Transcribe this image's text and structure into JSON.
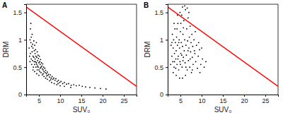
{
  "chart_data": [
    {
      "type": "scatter",
      "title": "A",
      "x_label": "SUV₀",
      "y_label": "DRM",
      "xlim": [
        2,
        28
      ],
      "ylim": [
        0,
        1.65
      ],
      "xticks": [
        5,
        10,
        15,
        20,
        25
      ],
      "yticks": [
        0,
        0.5,
        1,
        1.5
      ],
      "series": [
        {
          "type": "scatter",
          "color": "#000000",
          "marker": "dot",
          "x": [
            3.0,
            3.2,
            3.1,
            3.4,
            3.3,
            3.5,
            3.6,
            3.8,
            3.9,
            4.0,
            4.1,
            4.2,
            4.3,
            4.4,
            4.5,
            4.6,
            4.7,
            4.8,
            4.9,
            5.0,
            5.1,
            5.2,
            5.3,
            5.4,
            5.5,
            5.6,
            5.7,
            5.8,
            5.9,
            6.0,
            6.1,
            6.2,
            6.4,
            6.5,
            6.6,
            6.8,
            7.0,
            7.1,
            7.3,
            7.5,
            7.7,
            7.9,
            8.1,
            8.3,
            8.5,
            8.8,
            9.0,
            9.3,
            9.6,
            9.9,
            10.2,
            10.6,
            11.0,
            11.5,
            12.0,
            12.6,
            13.2,
            13.8,
            14.5,
            15.2,
            16.0,
            17.0,
            18.2,
            19.5,
            20.8,
            2.8,
            2.9,
            3.0,
            3.2,
            3.3,
            3.5,
            3.6,
            3.7,
            3.9,
            4.0,
            4.2,
            4.3,
            4.5,
            4.6,
            4.8,
            5.0,
            5.2,
            5.5,
            5.8,
            6.2,
            6.6,
            7.0,
            7.5,
            8.0,
            8.6,
            9.2,
            10.0,
            11.0,
            12.5,
            2.7,
            2.9,
            3.1,
            3.4,
            3.8,
            4.1,
            4.4,
            4.7,
            5.3,
            6.0,
            6.8,
            7.8,
            9.5,
            3.6,
            4.0,
            4.5,
            5.0
          ],
          "values": [
            1.2,
            1.05,
            0.95,
            1.1,
            0.88,
            0.92,
            0.85,
            0.98,
            0.8,
            0.9,
            0.75,
            0.82,
            0.7,
            0.95,
            0.68,
            0.78,
            0.62,
            0.72,
            0.66,
            0.58,
            0.7,
            0.6,
            0.55,
            0.64,
            0.5,
            0.58,
            0.52,
            0.47,
            0.56,
            0.45,
            0.5,
            0.42,
            0.48,
            0.4,
            0.44,
            0.38,
            0.41,
            0.35,
            0.37,
            0.32,
            0.36,
            0.3,
            0.33,
            0.28,
            0.3,
            0.26,
            0.29,
            0.24,
            0.26,
            0.22,
            0.24,
            0.2,
            0.22,
            0.19,
            0.2,
            0.17,
            0.18,
            0.16,
            0.17,
            0.15,
            0.14,
            0.13,
            0.12,
            0.11,
            0.1,
            0.7,
            0.6,
            0.75,
            0.65,
            0.55,
            0.62,
            0.7,
            0.5,
            0.6,
            0.55,
            0.6,
            0.5,
            0.55,
            0.45,
            0.5,
            0.45,
            0.42,
            0.4,
            0.36,
            0.33,
            0.3,
            0.28,
            0.25,
            0.22,
            0.2,
            0.18,
            0.16,
            0.15,
            0.13,
            0.85,
            1.0,
            1.3,
            0.78,
            0.68,
            0.65,
            0.58,
            0.52,
            0.48,
            0.38,
            0.34,
            0.27,
            0.2,
            0.45,
            0.42,
            0.38,
            0.35
          ]
        },
        {
          "type": "line",
          "color": "#ff0000",
          "line_style": "solid",
          "x": [
            2,
            28
          ],
          "values": [
            1.6,
            0.15
          ]
        }
      ]
    },
    {
      "type": "scatter",
      "title": "B",
      "x_label": "SUV₀",
      "y_label": "DRM",
      "xlim": [
        2,
        28
      ],
      "ylim": [
        0,
        1.65
      ],
      "xticks": [
        5,
        10,
        15,
        20,
        25
      ],
      "yticks": [
        0,
        0.5,
        1,
        1.5
      ],
      "series": [
        {
          "type": "scatter",
          "color": "#000000",
          "marker": "dot",
          "x": [
            2.8,
            3.0,
            3.1,
            3.2,
            3.3,
            3.4,
            3.5,
            3.6,
            3.7,
            3.8,
            3.9,
            4.0,
            4.1,
            4.2,
            4.3,
            4.4,
            4.5,
            4.6,
            4.7,
            4.8,
            4.9,
            5.0,
            5.1,
            5.2,
            5.3,
            5.4,
            5.5,
            5.6,
            5.7,
            5.8,
            5.9,
            6.0,
            6.1,
            6.2,
            6.3,
            6.4,
            6.5,
            6.6,
            6.7,
            6.8,
            6.9,
            7.0,
            7.1,
            7.2,
            7.3,
            7.4,
            7.5,
            7.6,
            7.7,
            7.8,
            7.9,
            8.0,
            8.2,
            8.4,
            8.6,
            8.8,
            9.0,
            9.2,
            9.5,
            9.8,
            10.2,
            10.6,
            11.0,
            6.0,
            5.5,
            6.6,
            4.9,
            7.0,
            3.5,
            4.2,
            5.1,
            5.7,
            3.3,
            4.0,
            4.8,
            5.5,
            6.2,
            2.7,
            3.0,
            3.6,
            4.4,
            5.0,
            5.6,
            6.3,
            7.8,
            8.3,
            9.3,
            10.0,
            4.6,
            5.3,
            6.8,
            7.3,
            8.5,
            3.9,
            4.3,
            9.6
          ],
          "values": [
            0.9,
            0.7,
            1.1,
            0.6,
            0.85,
            1.0,
            0.5,
            0.75,
            1.2,
            0.95,
            0.65,
            0.8,
            1.05,
            0.55,
            0.9,
            1.3,
            0.7,
            0.45,
            1.0,
            0.85,
            0.6,
            1.15,
            0.75,
            0.95,
            1.45,
            0.5,
            0.88,
            1.1,
            0.68,
            1.35,
            0.8,
            1.0,
            0.58,
            1.55,
            0.9,
            0.72,
            1.2,
            0.45,
            0.98,
            1.4,
            0.62,
            0.85,
            1.05,
            0.5,
            1.25,
            0.78,
            0.95,
            0.4,
            1.1,
            0.68,
            0.88,
            0.55,
            1.0,
            0.75,
            0.6,
            0.9,
            0.48,
            0.7,
            0.82,
            0.55,
            0.65,
            0.5,
            0.6,
            1.62,
            1.6,
            1.58,
            1.5,
            1.5,
            1.3,
            1.2,
            1.3,
            1.22,
            0.4,
            0.35,
            0.3,
            0.3,
            0.35,
            0.55,
            0.95,
            0.6,
            0.65,
            0.55,
            0.62,
            0.5,
            0.45,
            0.8,
            0.95,
            0.85,
            0.95,
            0.72,
            0.8,
            0.65,
            1.15,
            0.48,
            1.45,
            0.4
          ]
        },
        {
          "type": "line",
          "color": "#ff0000",
          "line_style": "solid",
          "x": [
            2,
            28
          ],
          "values": [
            1.6,
            0.15
          ]
        }
      ]
    }
  ]
}
